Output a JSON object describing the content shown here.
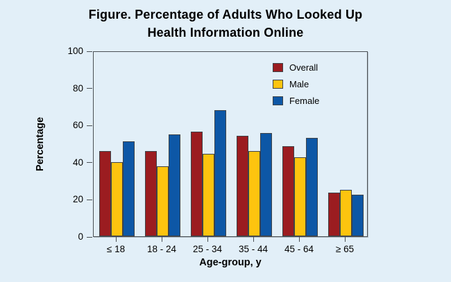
{
  "title": {
    "line1": "Figure. Percentage of Adults Who Looked Up",
    "line2": "Health Information Online"
  },
  "chart_data": {
    "type": "bar",
    "title": "Figure. Percentage of Adults Who Looked Up Health Information Online",
    "categories": [
      "≤ 18",
      "18 - 24",
      "25 - 34",
      "35 - 44",
      "45 - 64",
      "≥ 65"
    ],
    "series": [
      {
        "name": "Overall",
        "color": "#9b1c20",
        "values": [
          46,
          46,
          56.5,
          54,
          48.5,
          23.5
        ]
      },
      {
        "name": "Male",
        "color": "#fdc40f",
        "values": [
          40,
          37.5,
          44.5,
          46,
          42.5,
          25
        ]
      },
      {
        "name": "Female",
        "color": "#0d57a6",
        "values": [
          51,
          55,
          68,
          55.5,
          53,
          22.5
        ]
      }
    ],
    "xlabel": "Age-group, y",
    "ylabel": "Percentage",
    "ylim": [
      0,
      100
    ],
    "yticks": [
      0,
      20,
      40,
      60,
      80,
      100
    ],
    "grid": false,
    "legend_position": "top-right-inside"
  },
  "colors": {
    "background": "#e2eff8",
    "plot_border": "#4a4f54",
    "bar_border": "#3e4348",
    "text": "#000000"
  }
}
